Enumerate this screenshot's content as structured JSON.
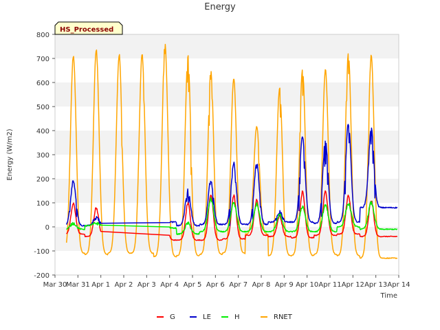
{
  "chart_data": {
    "type": "line",
    "title": "Energy",
    "xlabel": "Time",
    "ylabel": "Energy (W/m2)",
    "ylim": [
      -200,
      800
    ],
    "yticks": [
      -200,
      -100,
      0,
      100,
      200,
      300,
      400,
      500,
      600,
      700,
      800
    ],
    "xlim": [
      0,
      15
    ],
    "xticks": [
      0,
      1,
      2,
      3,
      4,
      5,
      6,
      7,
      8,
      9,
      10,
      11,
      12,
      13,
      14,
      15
    ],
    "xtick_labels": [
      "Mar 30",
      "Mar 31",
      "Apr 1",
      "Apr 2",
      "Apr 3",
      "Apr 4",
      "Apr 5",
      "Apr 6",
      "Apr 7",
      "Apr 8",
      "Apr 9",
      "Apr 10",
      "Apr 11",
      "Apr 12",
      "Apr 13",
      "Apr 14"
    ],
    "grid": "horizontal bands",
    "legend_position": "bottom",
    "badge": "HS_Processed",
    "daily_peaks": {
      "days": [
        0.8,
        1.8,
        2.8,
        3.8,
        4.8,
        5.8,
        6.8,
        7.8,
        8.8,
        9.8,
        10.8,
        11.8,
        12.8,
        13.8
      ],
      "RNET": [
        710,
        735,
        715,
        715,
        760,
        710,
        645,
        615,
        420,
        575,
        655,
        655,
        720,
        710
      ],
      "LE": [
        190,
        45,
        35,
        20,
        25,
        150,
        190,
        265,
        265,
        60,
        375,
        360,
        430,
        405
      ],
      "H": [
        15,
        15,
        10,
        10,
        5,
        15,
        115,
        100,
        95,
        50,
        85,
        90,
        95,
        100
      ],
      "G": [
        95,
        80,
        65,
        45,
        65,
        100,
        135,
        130,
        110,
        45,
        145,
        145,
        130,
        110
      ]
    },
    "night_min": {
      "RNET": [
        -110,
        -115,
        -110,
        -110,
        -125,
        -120,
        -115,
        -110,
        -30,
        -120,
        -120,
        -115,
        -120,
        -130
      ],
      "LE": [
        5,
        5,
        10,
        10,
        20,
        5,
        10,
        10,
        10,
        20,
        20,
        15,
        20,
        80
      ],
      "H": [
        -10,
        5,
        5,
        0,
        -5,
        -30,
        -20,
        -20,
        -20,
        -20,
        -20,
        -20,
        0,
        -10
      ],
      "G": [
        -30,
        -40,
        -45,
        -50,
        -55,
        -55,
        -55,
        -50,
        -35,
        -40,
        -45,
        -35,
        -30,
        -40
      ]
    },
    "series": [
      {
        "name": "G",
        "color": "#ff0000"
      },
      {
        "name": "LE",
        "color": "#0000cc"
      },
      {
        "name": "H",
        "color": "#00ee00"
      },
      {
        "name": "RNET",
        "color": "#ffa500"
      }
    ]
  }
}
